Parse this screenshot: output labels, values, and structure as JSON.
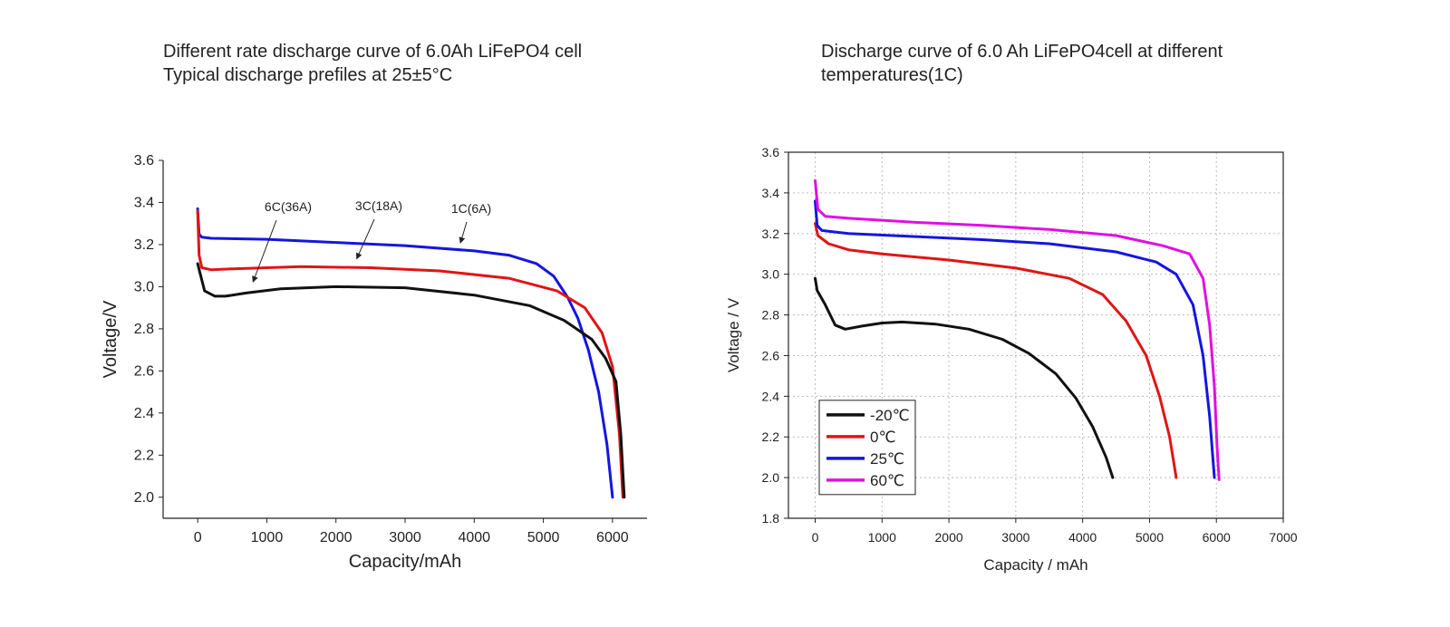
{
  "left_title": {
    "line1": "Different rate discharge curve of 6.0Ah LiFePO4 cell",
    "line2": "Typical discharge prefiles at 25±5°C"
  },
  "right_title": {
    "line1": "Discharge curve of 6.0 Ah LiFePO4cell at different",
    "line2": "temperatures(1C)"
  },
  "chart_data": [
    {
      "type": "line",
      "title": "Different rate discharge curve of 6.0Ah LiFePO4 cell / Typical discharge prefiles at 25±5°C",
      "xlabel": "Capacity/mAh",
      "ylabel": "Voltage/V",
      "xlim": [
        -500,
        6500
      ],
      "ylim": [
        1.9,
        3.6
      ],
      "xticks": [
        0,
        1000,
        2000,
        3000,
        4000,
        5000,
        6000
      ],
      "yticks": [
        2.0,
        2.2,
        2.4,
        2.6,
        2.8,
        3.0,
        3.2,
        3.4,
        3.6
      ],
      "grid": false,
      "annotations": [
        {
          "text": "6C(36A)",
          "series": "6C(36A)"
        },
        {
          "text": "3C(18A)",
          "series": "3C(18A)"
        },
        {
          "text": "1C(6A)",
          "series": "1C(6A)"
        }
      ],
      "series": [
        {
          "name": "1C(6A)",
          "color": "#1515e0",
          "points": [
            [
              0,
              3.37
            ],
            [
              20,
              3.25
            ],
            [
              60,
              3.235
            ],
            [
              200,
              3.23
            ],
            [
              1000,
              3.225
            ],
            [
              2000,
              3.21
            ],
            [
              3000,
              3.195
            ],
            [
              4000,
              3.17
            ],
            [
              4500,
              3.15
            ],
            [
              4900,
              3.11
            ],
            [
              5150,
              3.05
            ],
            [
              5350,
              2.95
            ],
            [
              5500,
              2.85
            ],
            [
              5650,
              2.7
            ],
            [
              5800,
              2.5
            ],
            [
              5920,
              2.25
            ],
            [
              6000,
              2.0
            ]
          ]
        },
        {
          "name": "3C(18A)",
          "color": "#e01515",
          "points": [
            [
              0,
              3.36
            ],
            [
              20,
              3.15
            ],
            [
              60,
              3.09
            ],
            [
              200,
              3.08
            ],
            [
              500,
              3.085
            ],
            [
              1500,
              3.095
            ],
            [
              2500,
              3.09
            ],
            [
              3500,
              3.075
            ],
            [
              4500,
              3.04
            ],
            [
              5200,
              2.98
            ],
            [
              5600,
              2.9
            ],
            [
              5850,
              2.78
            ],
            [
              6000,
              2.62
            ],
            [
              6100,
              2.3
            ],
            [
              6150,
              2.0
            ]
          ]
        },
        {
          "name": "6C(36A)",
          "color": "#111111",
          "points": [
            [
              0,
              3.11
            ],
            [
              30,
              3.07
            ],
            [
              100,
              2.98
            ],
            [
              250,
              2.955
            ],
            [
              400,
              2.955
            ],
            [
              700,
              2.97
            ],
            [
              1200,
              2.99
            ],
            [
              2000,
              3.0
            ],
            [
              3000,
              2.995
            ],
            [
              4000,
              2.96
            ],
            [
              4800,
              2.91
            ],
            [
              5300,
              2.84
            ],
            [
              5700,
              2.75
            ],
            [
              5900,
              2.66
            ],
            [
              6050,
              2.55
            ],
            [
              6120,
              2.3
            ],
            [
              6170,
              2.0
            ]
          ]
        }
      ]
    },
    {
      "type": "line",
      "title": "Discharge curve of 6.0 Ah LiFePO4cell at different temperatures(1C)",
      "xlabel": "Capacity / mAh",
      "ylabel": "Voltage / V",
      "xlim": [
        -400,
        7000
      ],
      "ylim": [
        1.8,
        3.6
      ],
      "xticks": [
        0,
        1000,
        2000,
        3000,
        4000,
        5000,
        6000,
        7000
      ],
      "yticks": [
        1.8,
        2.0,
        2.2,
        2.4,
        2.6,
        2.8,
        3.0,
        3.2,
        3.4,
        3.6
      ],
      "grid": true,
      "legend": "bottom-left",
      "series": [
        {
          "name": "-20℃",
          "color": "#111111",
          "points": [
            [
              0,
              2.98
            ],
            [
              30,
              2.92
            ],
            [
              150,
              2.85
            ],
            [
              300,
              2.75
            ],
            [
              450,
              2.73
            ],
            [
              700,
              2.745
            ],
            [
              1000,
              2.76
            ],
            [
              1300,
              2.765
            ],
            [
              1800,
              2.755
            ],
            [
              2300,
              2.73
            ],
            [
              2800,
              2.68
            ],
            [
              3200,
              2.61
            ],
            [
              3600,
              2.51
            ],
            [
              3900,
              2.39
            ],
            [
              4150,
              2.25
            ],
            [
              4350,
              2.1
            ],
            [
              4450,
              2.0
            ]
          ]
        },
        {
          "name": "0℃",
          "color": "#e01515",
          "points": [
            [
              0,
              3.25
            ],
            [
              40,
              3.19
            ],
            [
              200,
              3.15
            ],
            [
              500,
              3.12
            ],
            [
              1000,
              3.1
            ],
            [
              2000,
              3.07
            ],
            [
              3000,
              3.03
            ],
            [
              3800,
              2.98
            ],
            [
              4300,
              2.9
            ],
            [
              4650,
              2.77
            ],
            [
              4950,
              2.6
            ],
            [
              5150,
              2.4
            ],
            [
              5300,
              2.2
            ],
            [
              5400,
              2.0
            ]
          ]
        },
        {
          "name": "25℃",
          "color": "#1515e0",
          "points": [
            [
              0,
              3.36
            ],
            [
              30,
              3.24
            ],
            [
              100,
              3.215
            ],
            [
              500,
              3.2
            ],
            [
              1500,
              3.185
            ],
            [
              2500,
              3.17
            ],
            [
              3500,
              3.15
            ],
            [
              4500,
              3.11
            ],
            [
              5100,
              3.06
            ],
            [
              5400,
              3.0
            ],
            [
              5650,
              2.85
            ],
            [
              5800,
              2.6
            ],
            [
              5900,
              2.3
            ],
            [
              5970,
              2.0
            ]
          ]
        },
        {
          "name": "60℃",
          "color": "#e010e0",
          "points": [
            [
              0,
              3.46
            ],
            [
              40,
              3.32
            ],
            [
              150,
              3.285
            ],
            [
              500,
              3.275
            ],
            [
              1500,
              3.255
            ],
            [
              2500,
              3.24
            ],
            [
              3500,
              3.22
            ],
            [
              4500,
              3.19
            ],
            [
              5200,
              3.14
            ],
            [
              5600,
              3.1
            ],
            [
              5800,
              2.98
            ],
            [
              5900,
              2.75
            ],
            [
              5970,
              2.45
            ],
            [
              6010,
              2.15
            ],
            [
              6040,
              1.99
            ]
          ]
        }
      ]
    }
  ]
}
